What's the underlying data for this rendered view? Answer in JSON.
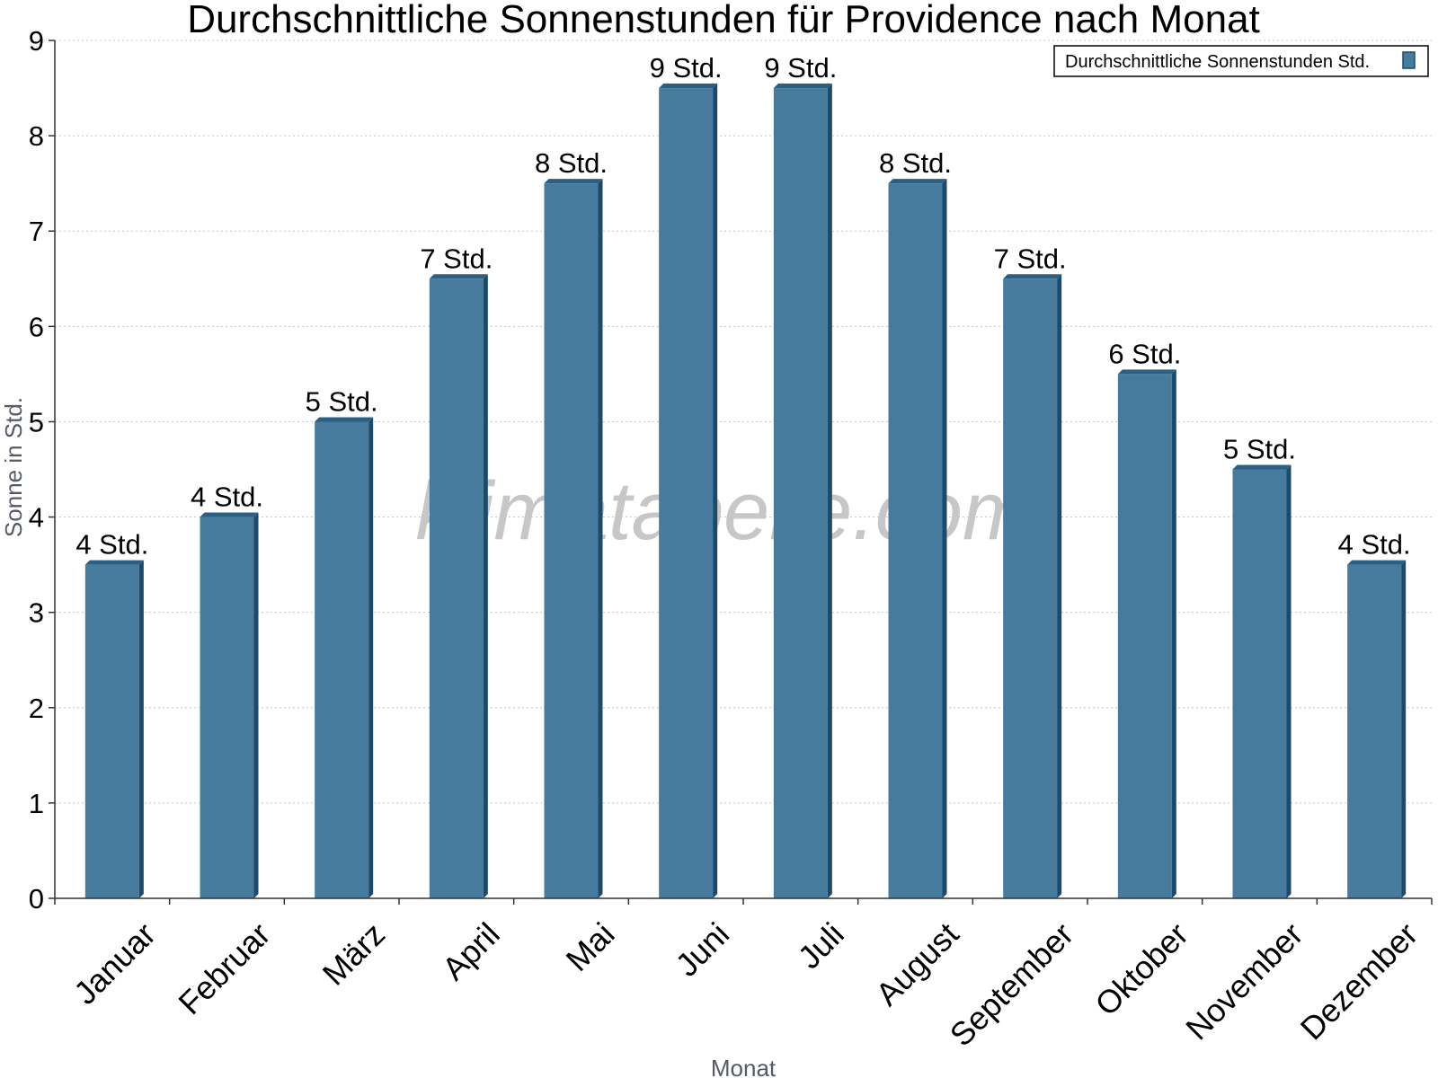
{
  "chart_data": {
    "type": "bar",
    "title": "Durchschnittliche Sonnenstunden für Providence nach Monat",
    "xlabel": "Monat",
    "ylabel": "Sonne in Std.",
    "ylim": [
      0,
      9
    ],
    "yticks": [
      "0",
      "1",
      "2",
      "3",
      "4",
      "5",
      "6",
      "7",
      "8",
      "9"
    ],
    "grid": true,
    "legend_position": "top-right",
    "categories": [
      "Januar",
      "Februar",
      "März",
      "April",
      "Mai",
      "Juni",
      "Juli",
      "August",
      "September",
      "Oktober",
      "November",
      "Dezember"
    ],
    "series": [
      {
        "name": "Durchschnittliche Sonnenstunden Std.",
        "values": [
          3.5,
          4,
          5,
          6.5,
          7.5,
          8.5,
          8.5,
          7.5,
          6.5,
          5.5,
          4.5,
          3.5
        ],
        "labels": [
          "4 Std.",
          "4 Std.",
          "5 Std.",
          "7 Std.",
          "8 Std.",
          "9 Std.",
          "9 Std.",
          "8 Std.",
          "7 Std.",
          "6 Std.",
          "5 Std.",
          "4 Std."
        ]
      }
    ]
  },
  "watermark": "klimatabelle.com",
  "colors": {
    "bar": "#467b9d",
    "bar_side": "#1d4a6b",
    "bar_top": "#2c5f84",
    "grid": "#c8c8c8",
    "axis": "#333333"
  }
}
